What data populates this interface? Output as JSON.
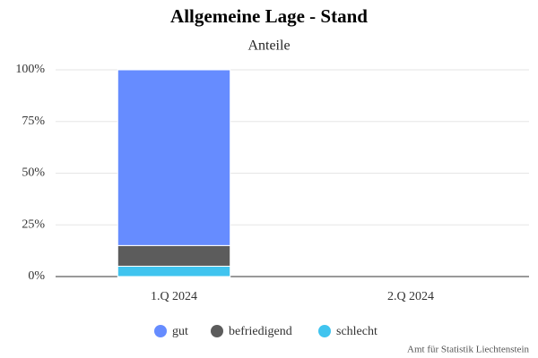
{
  "chart_data": {
    "type": "stacked-bar",
    "title": "Allgemeine Lage - Stand",
    "subtitle": "Anteile",
    "categories": [
      "1.Q 2024",
      "2.Q 2024"
    ],
    "series": [
      {
        "name": "gut",
        "color": "#668cff",
        "values": [
          85,
          null
        ]
      },
      {
        "name": "befriedigend",
        "color": "#5c5c5c",
        "values": [
          10,
          null
        ]
      },
      {
        "name": "schlecht",
        "color": "#40c4ef",
        "values": [
          5,
          null
        ]
      }
    ],
    "ylim": [
      0,
      100
    ],
    "yticks": [
      {
        "value": 0,
        "label": "0%"
      },
      {
        "value": 25,
        "label": "25%"
      },
      {
        "value": 50,
        "label": "50%"
      },
      {
        "value": 75,
        "label": "75%"
      },
      {
        "value": 100,
        "label": "100%"
      }
    ],
    "grid": true,
    "legend": "bottom",
    "credits": "Amt für Statistik Liechtenstein"
  }
}
